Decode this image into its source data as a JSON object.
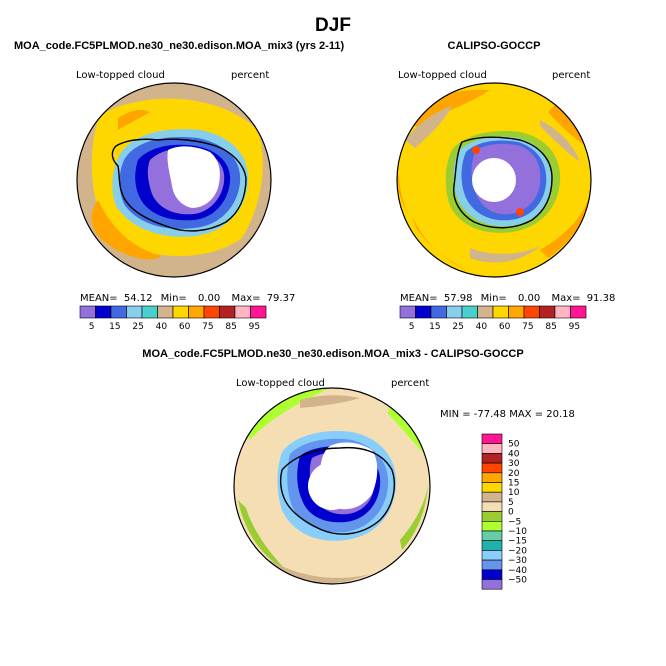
{
  "figure_title": "DJF",
  "chart_data": [
    {
      "type": "heatmap",
      "projection": "south-polar-stereographic",
      "title": "MOA_code.FC5PLMOD.ne30_ne30.edison.MOA_mix3 (yrs 2-11)",
      "variable": "Low-topped cloud",
      "units": "percent",
      "stats": {
        "mean_label": "MEAN=",
        "mean": "54.12",
        "min_label": "Min=",
        "min": "0.00",
        "max_label": "Max=",
        "max": "79.37"
      },
      "levels": [
        5,
        15,
        25,
        40,
        60,
        75,
        85,
        95
      ],
      "level_labels": [
        "5",
        "15",
        "25",
        "40",
        "60",
        "75",
        "85",
        "95"
      ],
      "palette": [
        "#9370db",
        "#0000cd",
        "#4169e1",
        "#87ceeb",
        "#48d1cc",
        "#d2b48c",
        "#ffd700",
        "#ffa500",
        "#ff4500",
        "#b22222",
        "#ffb6c1",
        "#ff1493"
      ]
    },
    {
      "type": "heatmap",
      "projection": "south-polar-stereographic",
      "title": "CALIPSO-GOCCP",
      "variable": "Low-topped cloud",
      "units": "percent",
      "stats": {
        "mean_label": "MEAN=",
        "mean": "57.98",
        "min_label": "Min=",
        "min": "0.00",
        "max_label": "Max=",
        "max": "91.38"
      },
      "levels": [
        5,
        15,
        25,
        40,
        60,
        75,
        85,
        95
      ],
      "level_labels": [
        "5",
        "15",
        "25",
        "40",
        "60",
        "75",
        "85",
        "95"
      ],
      "palette": [
        "#9370db",
        "#0000cd",
        "#4169e1",
        "#87ceeb",
        "#48d1cc",
        "#d2b48c",
        "#ffd700",
        "#ffa500",
        "#ff4500",
        "#b22222",
        "#ffb6c1",
        "#ff1493"
      ]
    },
    {
      "type": "heatmap",
      "projection": "south-polar-stereographic",
      "title": "MOA_code.FC5PLMOD.ne30_ne30.edison.MOA_mix3 - CALIPSO-GOCCP",
      "variable": "Low-topped cloud",
      "units": "percent",
      "stats_text": "MIN = -77.48 MAX =  20.18",
      "levels": [
        50,
        40,
        30,
        20,
        15,
        10,
        5,
        0,
        -5,
        -10,
        -15,
        -20,
        -30,
        -40,
        -50
      ],
      "level_labels": [
        "50",
        "40",
        "30",
        "20",
        "15",
        "10",
        "5",
        "0",
        "−5",
        "−10",
        "−15",
        "−20",
        "−30",
        "−40",
        "−50"
      ],
      "palette": [
        "#ff1493",
        "#ffb6c1",
        "#b22222",
        "#ff4500",
        "#ffa500",
        "#ffd700",
        "#d2b48c",
        "#f5deb3",
        "#9acd32",
        "#adff2f",
        "#66cdaa",
        "#20b2aa",
        "#87cefa",
        "#6495ed",
        "#0000cd",
        "#9370db"
      ]
    }
  ]
}
